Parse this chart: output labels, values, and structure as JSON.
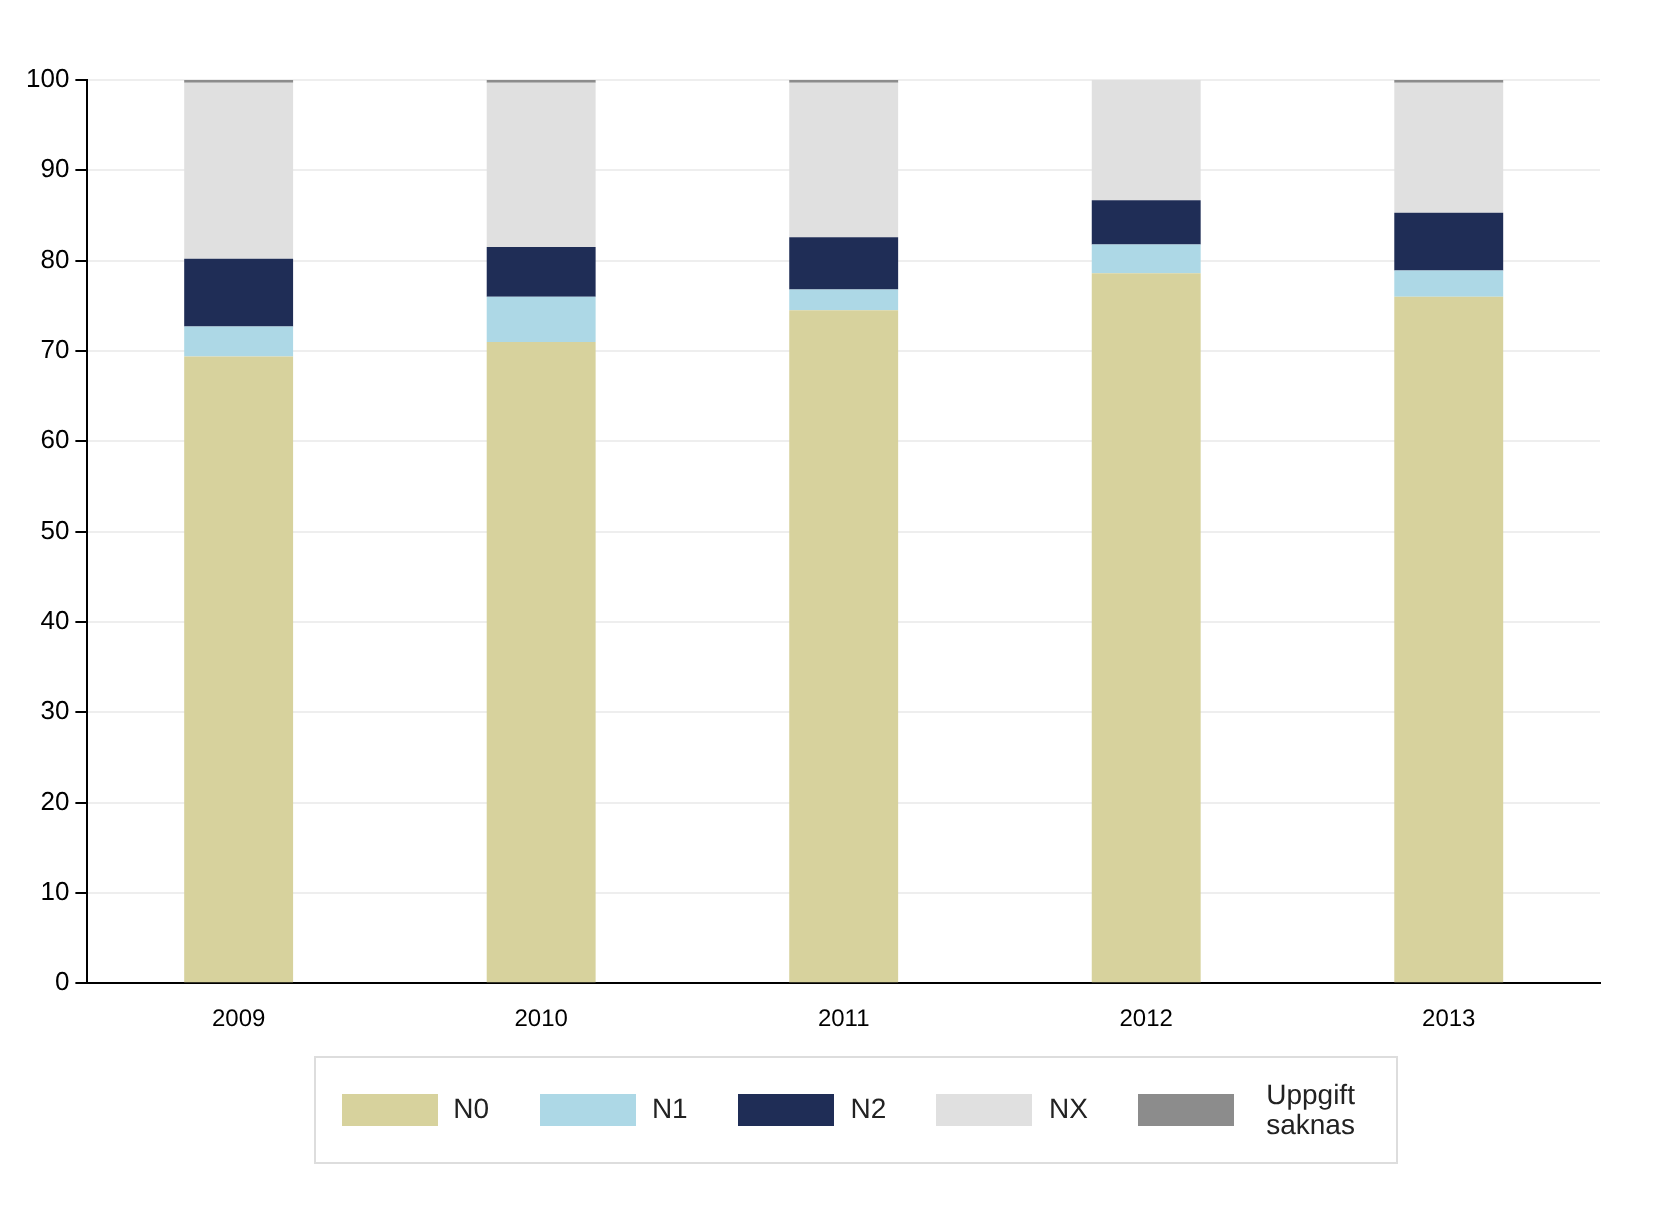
{
  "chart_data": {
    "type": "bar",
    "stacked": true,
    "categories": [
      "2009",
      "2010",
      "2011",
      "2012",
      "2013"
    ],
    "series": [
      {
        "name": "N0",
        "color": "#d7d29d",
        "values": [
          69.4,
          71.0,
          74.5,
          78.6,
          76.0
        ]
      },
      {
        "name": "N1",
        "color": "#add8e6",
        "values": [
          3.3,
          5.0,
          2.3,
          3.2,
          2.9
        ]
      },
      {
        "name": "N2",
        "color": "#1f2d56",
        "values": [
          7.5,
          5.5,
          5.8,
          4.9,
          6.4
        ]
      },
      {
        "name": "NX",
        "color": "#e0e0e0",
        "values": [
          19.5,
          18.2,
          17.1,
          13.3,
          14.4
        ]
      },
      {
        "name": "Uppgift saknas",
        "color": "#8c8c8c",
        "values": [
          0.3,
          0.3,
          0.3,
          0,
          0.3
        ]
      }
    ],
    "ylim": [
      0,
      100
    ],
    "yticks": [
      0,
      10,
      20,
      30,
      40,
      50,
      60,
      70,
      80,
      90,
      100
    ],
    "grid": "y",
    "legend": "bottom"
  }
}
